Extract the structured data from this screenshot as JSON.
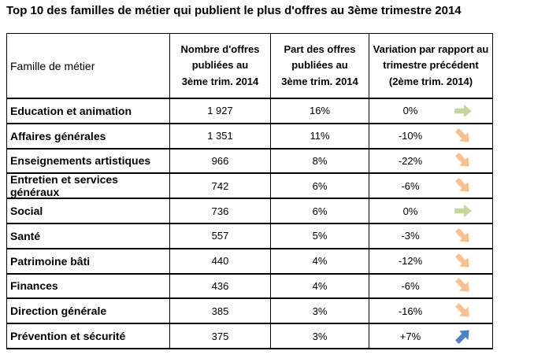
{
  "title": "Top 10 des familles de métier qui publient le plus d'offres au 3ème trimestre 2014",
  "table": {
    "headers": {
      "famille": "Famille de métier",
      "nombre": [
        "Nombre d'offres",
        "publiées au",
        "3ème trim. 2014"
      ],
      "part": [
        "Part des offres",
        "publiées au",
        "3ème trim. 2014"
      ],
      "variation": [
        "Variation par rapport au",
        "trimestre précédent",
        "(2ème trim. 2014)"
      ]
    },
    "rows": [
      {
        "famille": "Education et animation",
        "nombre": "1 927",
        "part": "16%",
        "variation": "0%",
        "trend": "flat"
      },
      {
        "famille": "Affaires générales",
        "nombre": "1 351",
        "part": "11%",
        "variation": "-10%",
        "trend": "down"
      },
      {
        "famille": "Enseignements artistiques",
        "nombre": "966",
        "part": "8%",
        "variation": "-22%",
        "trend": "down"
      },
      {
        "famille": "Entretien et services généraux",
        "nombre": "742",
        "part": "6%",
        "variation": "-6%",
        "trend": "down"
      },
      {
        "famille": "Social",
        "nombre": "736",
        "part": "6%",
        "variation": "0%",
        "trend": "flat"
      },
      {
        "famille": "Santé",
        "nombre": "557",
        "part": "5%",
        "variation": "-3%",
        "trend": "down"
      },
      {
        "famille": "Patrimoine bâti",
        "nombre": "440",
        "part": "4%",
        "variation": "-12%",
        "trend": "down"
      },
      {
        "famille": "Finances",
        "nombre": "436",
        "part": "4%",
        "variation": "-6%",
        "trend": "down"
      },
      {
        "famille": "Direction générale",
        "nombre": "385",
        "part": "3%",
        "variation": "-16%",
        "trend": "down"
      },
      {
        "famille": "Prévention et sécurité",
        "nombre": "375",
        "part": "3%",
        "variation": "+7%",
        "trend": "up"
      }
    ]
  },
  "colors": {
    "flat": "#c3d69b",
    "down": "#fabf8f",
    "up": "#4f81bd"
  },
  "chart_data": {
    "type": "table",
    "title": "Top 10 des familles de métier qui publient le plus d'offres au 3ème trimestre 2014",
    "categories": [
      "Education et animation",
      "Affaires générales",
      "Enseignements artistiques",
      "Entretien et services généraux",
      "Social",
      "Santé",
      "Patrimoine bâti",
      "Finances",
      "Direction générale",
      "Prévention et sécurité"
    ],
    "series": [
      {
        "name": "Nombre d'offres publiées au 3ème trim. 2014",
        "values": [
          1927,
          1351,
          966,
          742,
          736,
          557,
          440,
          436,
          385,
          375
        ]
      },
      {
        "name": "Part des offres publiées au 3ème trim. 2014 (%)",
        "values": [
          16,
          11,
          8,
          6,
          6,
          5,
          4,
          4,
          3,
          3
        ]
      },
      {
        "name": "Variation par rapport au trimestre précédent (2ème trim. 2014) (%)",
        "values": [
          0,
          -10,
          -22,
          -6,
          0,
          -3,
          -12,
          -6,
          -16,
          7
        ]
      }
    ]
  }
}
